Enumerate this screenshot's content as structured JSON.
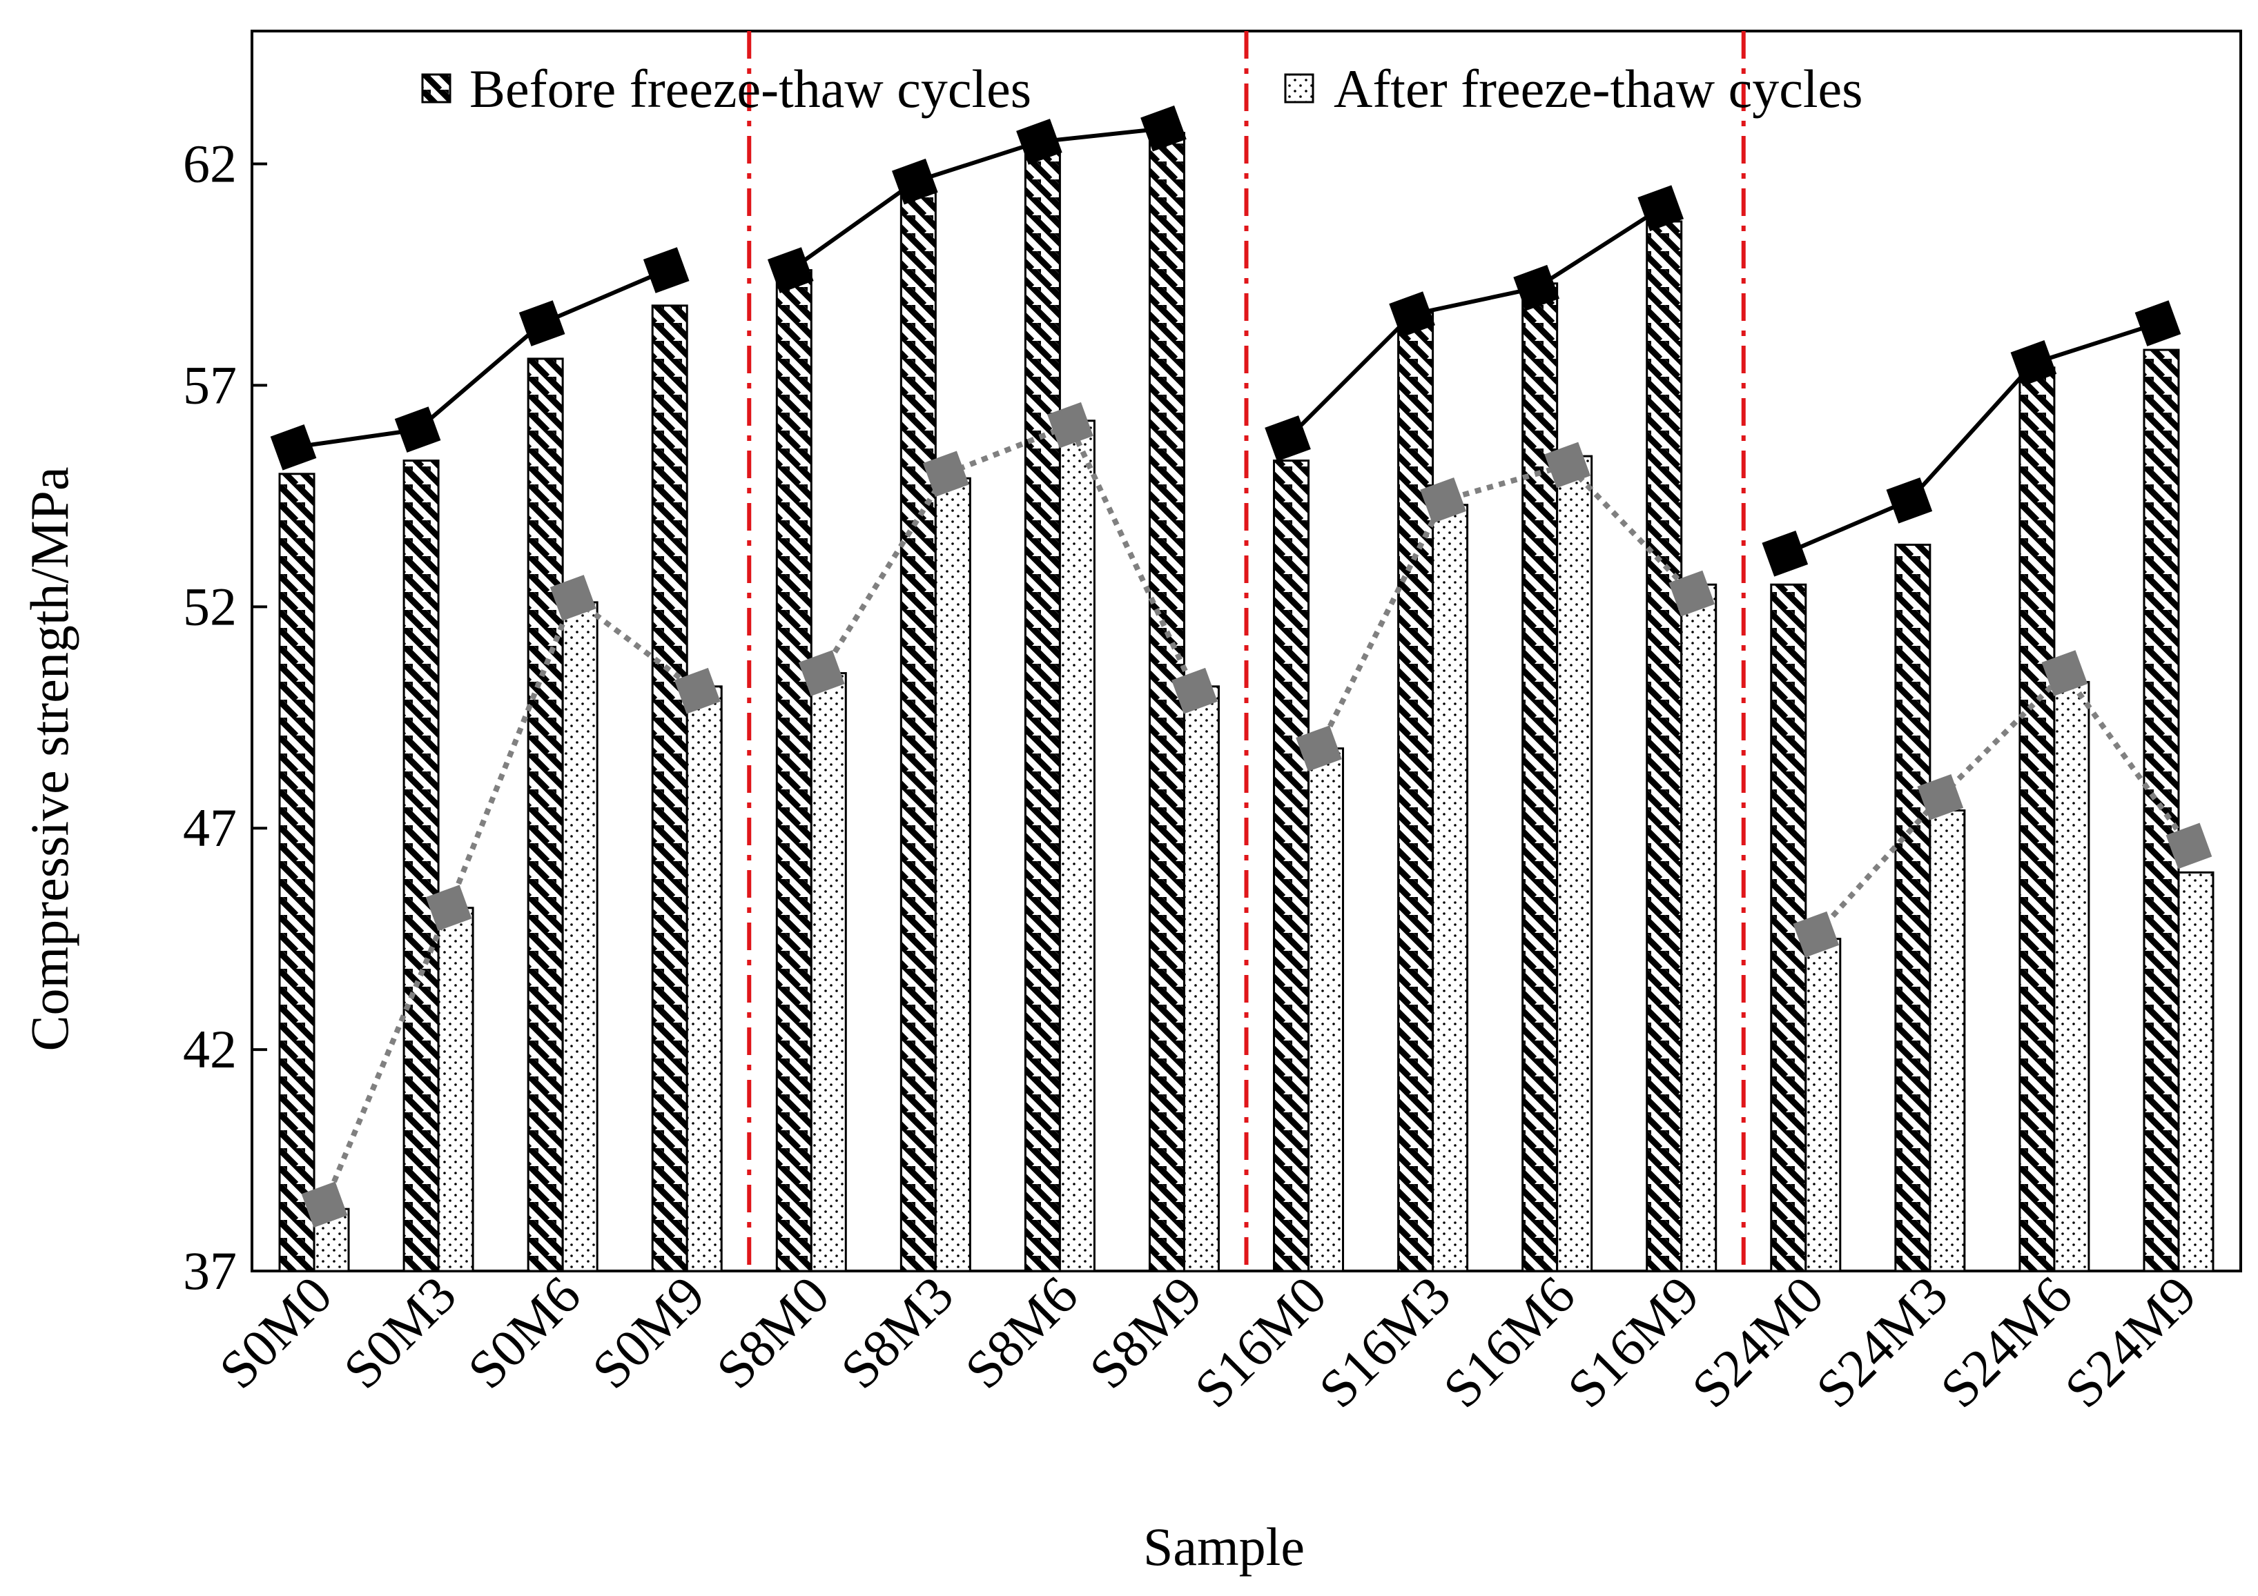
{
  "chart_data": {
    "type": "bar",
    "title": "",
    "xlabel": "Sample",
    "ylabel": "Compressive strength/MPa",
    "ylim": [
      37,
      65
    ],
    "yticks": [
      37,
      42,
      47,
      52,
      57,
      62
    ],
    "categories": [
      "S0M0",
      "S0M3",
      "S0M6",
      "S0M9",
      "S8M0",
      "S8M3",
      "S8M6",
      "S8M9",
      "S16M0",
      "S16M3",
      "S16M6",
      "S16M9",
      "S24M0",
      "S24M3",
      "S24M6",
      "S24M9"
    ],
    "series": [
      {
        "name": "Before freeze-thaw cycles",
        "pattern": "diagonal-hatch",
        "bar_values": [
          55.0,
          55.3,
          57.6,
          58.8,
          59.6,
          61.4,
          62.3,
          62.7,
          55.3,
          58.7,
          59.3,
          60.7,
          52.5,
          53.4,
          57.4,
          57.8
        ],
        "line_values": [
          55.6,
          56.0,
          58.4,
          59.6,
          59.6,
          61.6,
          62.5,
          62.8,
          55.8,
          58.6,
          59.2,
          61.0,
          53.2,
          54.4,
          57.5,
          58.4
        ],
        "marker_color": "#000000",
        "line_style": "solid"
      },
      {
        "name": "After freeze-thaw cycles",
        "pattern": "dots",
        "bar_values": [
          38.4,
          45.2,
          52.1,
          50.2,
          50.5,
          54.9,
          56.2,
          50.2,
          48.8,
          54.3,
          55.4,
          52.5,
          44.5,
          47.4,
          50.3,
          46.0
        ],
        "line_values": [
          38.5,
          45.2,
          52.2,
          50.1,
          50.5,
          55.0,
          56.1,
          50.1,
          48.8,
          54.4,
          55.2,
          52.3,
          44.6,
          47.7,
          50.5,
          46.6
        ],
        "marker_color": "#7a7a7a",
        "line_style": "dotted"
      }
    ],
    "group_separators_after": [
      4,
      8,
      12
    ],
    "separator_color": "#e0161a",
    "legend_position": "top"
  }
}
